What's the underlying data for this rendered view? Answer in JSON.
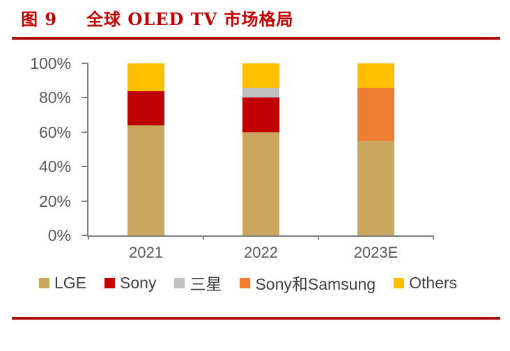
{
  "figure": {
    "label": "图 9",
    "title": "全球 OLED TV 市场格局"
  },
  "colors": {
    "title": "#C00000",
    "rule": "#AE0E0E",
    "axis_line": "#808080",
    "axis_label": "#595959",
    "legend_label": "#404040"
  },
  "chart_data": {
    "type": "bar",
    "stacked": true,
    "title": "全球 OLED TV 市场格局",
    "categories": [
      "2021",
      "2022",
      "2023E"
    ],
    "series": [
      {
        "name": "LGE",
        "color": "#C9A55E",
        "values": [
          64,
          60,
          55
        ]
      },
      {
        "name": "Sony",
        "color": "#C00000",
        "values": [
          20,
          20,
          0
        ]
      },
      {
        "name": "三星",
        "color": "#BFBFBF",
        "values": [
          0,
          6,
          0
        ]
      },
      {
        "name": "Sony和Samsung",
        "color": "#ED7D31",
        "values": [
          0,
          0,
          31
        ]
      },
      {
        "name": "Others",
        "color": "#FFC000",
        "values": [
          16,
          14,
          14
        ]
      }
    ],
    "y_axis": {
      "min": 0,
      "max": 100,
      "tick_step": 20,
      "format": "percent",
      "tick_values": [
        0,
        20,
        40,
        60,
        80,
        100
      ],
      "tick_labels": [
        "0%",
        "20%",
        "40%",
        "60%",
        "80%",
        "100%"
      ]
    },
    "xlabel": "",
    "ylabel": "",
    "grid": false,
    "legend_position": "bottom"
  }
}
